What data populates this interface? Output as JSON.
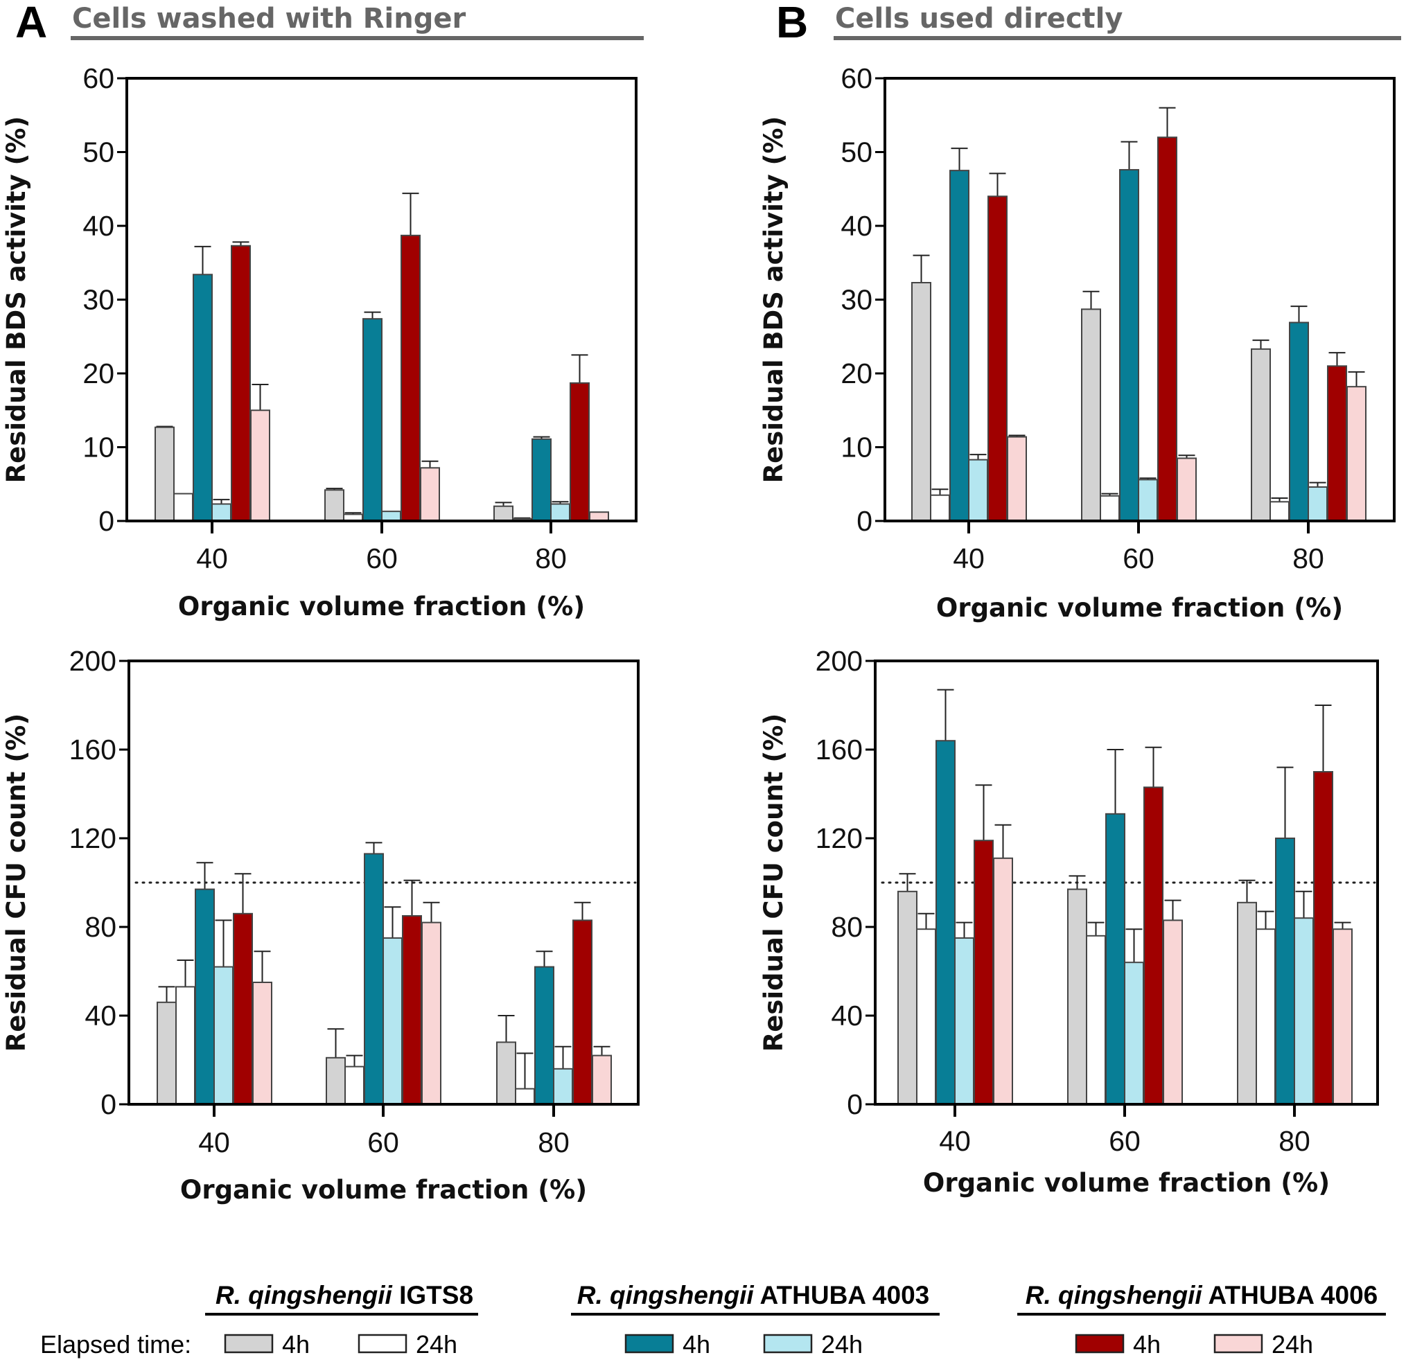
{
  "panels": [
    {
      "letter": "A",
      "title": "Cells washed with Ringer"
    },
    {
      "letter": "B",
      "title": "Cells used directly"
    }
  ],
  "colors": {
    "IGTS8_4h": "#d3d3d3",
    "IGTS8_24h": "#ffffff",
    "ATHUBA4003_4h": "#087e96",
    "ATHUBA4003_24h": "#b4e6f0",
    "ATHUBA4006_4h": "#a00000",
    "ATHUBA4006_24h": "#f9d6d6"
  },
  "legend": {
    "elapsed_label": "Elapsed time:",
    "groups": [
      {
        "italic": "R. qingshengii",
        "strain": " IGTS8",
        "items": [
          {
            "label": "4h",
            "color_key": "IGTS8_4h"
          },
          {
            "label": "24h",
            "color_key": "IGTS8_24h"
          }
        ]
      },
      {
        "italic": "R. qingshengii",
        "strain": " ATHUBA 4003",
        "items": [
          {
            "label": "4h",
            "color_key": "ATHUBA4003_4h"
          },
          {
            "label": "24h",
            "color_key": "ATHUBA4003_24h"
          }
        ]
      },
      {
        "italic": "R. qingshengii",
        "strain": " ATHUBA 4006",
        "items": [
          {
            "label": "4h",
            "color_key": "ATHUBA4006_4h"
          },
          {
            "label": "24h",
            "color_key": "ATHUBA4006_24h"
          }
        ]
      }
    ]
  },
  "chart_data": [
    {
      "id": "A-bds",
      "panel": "A",
      "type": "bar",
      "title": "Cells washed with Ringer",
      "xlabel": "Organic volume fraction (%)",
      "ylabel": "Residual BDS activity (%)",
      "categories": [
        "40",
        "60",
        "80"
      ],
      "ylim": [
        0,
        60
      ],
      "yticks": [
        0,
        10,
        20,
        30,
        40,
        50,
        60
      ],
      "reference_line": null,
      "series": [
        {
          "name": "IGTS8 4h",
          "color_key": "IGTS8_4h",
          "values": [
            12.7,
            4.2,
            2.0
          ],
          "errors": [
            0.1,
            0.2,
            0.5
          ]
        },
        {
          "name": "IGTS8 24h",
          "color_key": "IGTS8_24h",
          "values": [
            3.7,
            0.9,
            0.3
          ],
          "errors": [
            0,
            0.2,
            0.1
          ]
        },
        {
          "name": "ATHUBA 4003 4h",
          "color_key": "ATHUBA4003_4h",
          "values": [
            33.4,
            27.4,
            11.1
          ],
          "errors": [
            3.8,
            0.9,
            0.3
          ]
        },
        {
          "name": "ATHUBA 4003 24h",
          "color_key": "ATHUBA4003_24h",
          "values": [
            2.3,
            1.3,
            2.3
          ],
          "errors": [
            0.6,
            0,
            0.3
          ]
        },
        {
          "name": "ATHUBA 4006 4h",
          "color_key": "ATHUBA4006_4h",
          "values": [
            37.3,
            38.7,
            18.7
          ],
          "errors": [
            0.5,
            5.7,
            3.8
          ]
        },
        {
          "name": "ATHUBA 4006 24h",
          "color_key": "ATHUBA4006_24h",
          "values": [
            15.0,
            7.2,
            1.2
          ],
          "errors": [
            3.5,
            0.9,
            0
          ]
        }
      ]
    },
    {
      "id": "B-bds",
      "panel": "B",
      "type": "bar",
      "title": "Cells used directly",
      "xlabel": "Organic volume fraction (%)",
      "ylabel": "Residual BDS activity (%)",
      "categories": [
        "40",
        "60",
        "80"
      ],
      "ylim": [
        0,
        60
      ],
      "yticks": [
        0,
        10,
        20,
        30,
        40,
        50,
        60
      ],
      "reference_line": null,
      "series": [
        {
          "name": "IGTS8 4h",
          "color_key": "IGTS8_4h",
          "values": [
            32.3,
            28.7,
            23.3
          ],
          "errors": [
            3.7,
            2.4,
            1.2
          ]
        },
        {
          "name": "IGTS8 24h",
          "color_key": "IGTS8_24h",
          "values": [
            3.5,
            3.4,
            2.6
          ],
          "errors": [
            0.8,
            0.3,
            0.5
          ]
        },
        {
          "name": "ATHUBA 4003 4h",
          "color_key": "ATHUBA4003_4h",
          "values": [
            47.5,
            47.6,
            26.9
          ],
          "errors": [
            3.0,
            3.8,
            2.2
          ]
        },
        {
          "name": "ATHUBA 4003 24h",
          "color_key": "ATHUBA4003_24h",
          "values": [
            8.3,
            5.6,
            4.6
          ],
          "errors": [
            0.7,
            0.2,
            0.6
          ]
        },
        {
          "name": "ATHUBA 4006 4h",
          "color_key": "ATHUBA4006_4h",
          "values": [
            44.0,
            52.0,
            21.0
          ],
          "errors": [
            3.1,
            4.0,
            1.8
          ]
        },
        {
          "name": "ATHUBA 4006 24h",
          "color_key": "ATHUBA4006_24h",
          "values": [
            11.4,
            8.5,
            18.2
          ],
          "errors": [
            0.2,
            0.4,
            2.0
          ]
        }
      ]
    },
    {
      "id": "A-cfu",
      "panel": "A",
      "type": "bar",
      "title": "",
      "xlabel": "Organic volume fraction (%)",
      "ylabel": "Residual CFU count (%)",
      "categories": [
        "40",
        "60",
        "80"
      ],
      "ylim": [
        0,
        200
      ],
      "yticks": [
        0,
        40,
        80,
        120,
        160,
        200
      ],
      "reference_line": 100,
      "series": [
        {
          "name": "IGTS8 4h",
          "color_key": "IGTS8_4h",
          "values": [
            46,
            21,
            28
          ],
          "errors": [
            7,
            13,
            12
          ]
        },
        {
          "name": "IGTS8 24h",
          "color_key": "IGTS8_24h",
          "values": [
            53,
            17,
            7
          ],
          "errors": [
            12,
            5,
            16
          ]
        },
        {
          "name": "ATHUBA 4003 4h",
          "color_key": "ATHUBA4003_4h",
          "values": [
            97,
            113,
            62
          ],
          "errors": [
            12,
            5,
            7
          ]
        },
        {
          "name": "ATHUBA 4003 24h",
          "color_key": "ATHUBA4003_24h",
          "values": [
            62,
            75,
            16
          ],
          "errors": [
            21,
            14,
            10
          ]
        },
        {
          "name": "ATHUBA 4006 4h",
          "color_key": "ATHUBA4006_4h",
          "values": [
            86,
            85,
            83
          ],
          "errors": [
            18,
            16,
            8
          ]
        },
        {
          "name": "ATHUBA 4006 24h",
          "color_key": "ATHUBA4006_24h",
          "values": [
            55,
            82,
            22
          ],
          "errors": [
            14,
            9,
            4
          ]
        }
      ]
    },
    {
      "id": "B-cfu",
      "panel": "B",
      "type": "bar",
      "title": "",
      "xlabel": "Organic volume fraction (%)",
      "ylabel": "Residual CFU count (%)",
      "categories": [
        "40",
        "60",
        "80"
      ],
      "ylim": [
        0,
        200
      ],
      "yticks": [
        0,
        40,
        80,
        120,
        160,
        200
      ],
      "reference_line": 100,
      "series": [
        {
          "name": "IGTS8 4h",
          "color_key": "IGTS8_4h",
          "values": [
            96,
            97,
            91
          ],
          "errors": [
            8,
            6,
            10
          ]
        },
        {
          "name": "IGTS8 24h",
          "color_key": "IGTS8_24h",
          "values": [
            79,
            76,
            79
          ],
          "errors": [
            7,
            6,
            8
          ]
        },
        {
          "name": "ATHUBA 4003 4h",
          "color_key": "ATHUBA4003_4h",
          "values": [
            164,
            131,
            120
          ],
          "errors": [
            23,
            29,
            32
          ]
        },
        {
          "name": "ATHUBA 4003 24h",
          "color_key": "ATHUBA4003_24h",
          "values": [
            75,
            64,
            84
          ],
          "errors": [
            7,
            15,
            12
          ]
        },
        {
          "name": "ATHUBA 4006 4h",
          "color_key": "ATHUBA4006_4h",
          "values": [
            119,
            143,
            150
          ],
          "errors": [
            25,
            18,
            30
          ]
        },
        {
          "name": "ATHUBA 4006 24h",
          "color_key": "ATHUBA4006_24h",
          "values": [
            111,
            83,
            79
          ],
          "errors": [
            15,
            9,
            3
          ]
        }
      ]
    }
  ]
}
